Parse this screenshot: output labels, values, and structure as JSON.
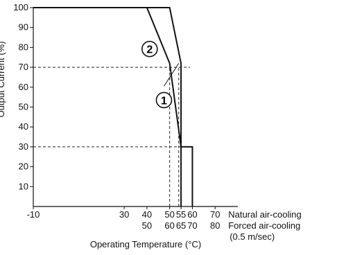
{
  "chart_data": {
    "type": "line",
    "ylabel": "Output Current (%)",
    "xlabel": "Operating Temperature (°C)",
    "ylim": [
      0,
      100
    ],
    "yticks": [
      10,
      20,
      30,
      40,
      50,
      60,
      70,
      80,
      90,
      100
    ],
    "xlim": [
      -10,
      80
    ],
    "x_axes": [
      {
        "name": "Natural air-cooling",
        "label": "Natural air-cooling",
        "ticks": [
          "-10",
          "30",
          "40",
          "50",
          "55",
          "60",
          "70"
        ],
        "tick_values": [
          -10,
          30,
          40,
          50,
          55,
          60,
          70
        ]
      },
      {
        "name": "Forced air-cooling",
        "label": "Forced air-cooling",
        "ticks": [
          "50",
          "60",
          "65",
          "70",
          "80"
        ],
        "tick_values": [
          40,
          50,
          55,
          60,
          70
        ]
      }
    ],
    "forced_note": "(0.5 m/sec)",
    "series": [
      {
        "name": "1",
        "marker": "①",
        "x": [
          -10,
          50,
          55,
          55,
          60,
          60
        ],
        "y": [
          100,
          100,
          72,
          30,
          30,
          0
        ]
      },
      {
        "name": "2",
        "marker": "②",
        "x": [
          -10,
          40,
          50,
          55,
          55
        ],
        "y": [
          100,
          100,
          72,
          30,
          0
        ]
      }
    ],
    "reference_lines": [
      {
        "y": 70,
        "x_end": 59
      },
      {
        "y": 30,
        "x_end": 59
      },
      {
        "x": 50,
        "y_end": 70
      },
      {
        "x": 54,
        "y_end": 70
      }
    ]
  }
}
